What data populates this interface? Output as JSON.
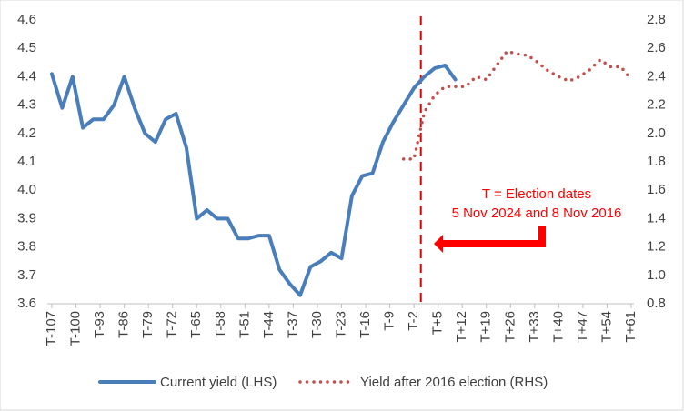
{
  "chart_data": {
    "type": "line",
    "x": [
      -107,
      -104,
      -101,
      -98,
      -95,
      -92,
      -89,
      -86,
      -83,
      -80,
      -77,
      -74,
      -71,
      -68,
      -65,
      -62,
      -59,
      -56,
      -53,
      -50,
      -47,
      -44,
      -41,
      -38,
      -35,
      -32,
      -29,
      -26,
      -23,
      -20,
      -17,
      -14,
      -11,
      -8,
      -5,
      -2,
      1,
      4,
      7,
      10,
      13,
      16,
      19,
      22,
      25,
      28,
      31,
      34,
      37,
      40,
      43,
      46,
      49,
      52,
      55,
      58,
      61
    ],
    "xlim": [
      -107,
      61
    ],
    "xticks": [
      {
        "value": -107,
        "label": "T-107"
      },
      {
        "value": -100,
        "label": "T-100"
      },
      {
        "value": -93,
        "label": "T-93"
      },
      {
        "value": -86,
        "label": "T-86"
      },
      {
        "value": -79,
        "label": "T-79"
      },
      {
        "value": -72,
        "label": "T-72"
      },
      {
        "value": -65,
        "label": "T-65"
      },
      {
        "value": -58,
        "label": "T-58"
      },
      {
        "value": -51,
        "label": "T-51"
      },
      {
        "value": -44,
        "label": "T-44"
      },
      {
        "value": -37,
        "label": "T-37"
      },
      {
        "value": -30,
        "label": "T-30"
      },
      {
        "value": -23,
        "label": "T-23"
      },
      {
        "value": -16,
        "label": "T-16"
      },
      {
        "value": -9,
        "label": "T-9"
      },
      {
        "value": -2,
        "label": "T-2"
      },
      {
        "value": 5,
        "label": "T+5"
      },
      {
        "value": 12,
        "label": "T+12"
      },
      {
        "value": 19,
        "label": "T+19"
      },
      {
        "value": 26,
        "label": "T+26"
      },
      {
        "value": 33,
        "label": "T+33"
      },
      {
        "value": 40,
        "label": "T+40"
      },
      {
        "value": 47,
        "label": "T+47"
      },
      {
        "value": 54,
        "label": "T+54"
      },
      {
        "value": 61,
        "label": "T+61"
      }
    ],
    "ylim": [
      3.6,
      4.6
    ],
    "yticks": [
      3.6,
      3.7,
      3.8,
      3.9,
      {
        "value": 4,
        "label": "4.0"
      },
      4.1,
      4.2,
      4.3,
      4.4,
      4.5,
      4.6
    ],
    "y2lim": [
      0.8,
      2.8
    ],
    "y2ticks": [
      0.8,
      {
        "value": 1,
        "label": "1.0"
      },
      1.2,
      1.4,
      1.6,
      1.8,
      {
        "value": 2,
        "label": "2.0"
      },
      2.2,
      2.4,
      2.6,
      2.8
    ],
    "grid": false,
    "vline": 0,
    "annotation": [
      "T = Election dates",
      "5 Nov 2024 and 8 Nov 2016"
    ],
    "series": [
      {
        "name": "Current yield (LHS)",
        "color": "#4a7ebb",
        "style": "solid",
        "values": [
          4.41,
          4.29,
          4.4,
          4.22,
          4.25,
          4.25,
          4.3,
          4.4,
          4.29,
          4.2,
          4.17,
          4.25,
          4.27,
          4.15,
          3.9,
          3.93,
          3.9,
          3.9,
          3.83,
          3.83,
          3.84,
          3.84,
          3.72,
          3.67,
          3.63,
          3.73,
          3.75,
          3.78,
          3.76,
          3.98,
          4.05,
          4.06,
          4.17,
          4.24,
          4.3,
          4.36,
          4.4,
          4.43,
          4.44,
          4.39,
          null,
          null,
          null,
          null,
          null,
          null,
          null,
          null,
          null,
          null,
          null,
          null,
          null,
          null,
          null,
          null,
          null
        ]
      },
      {
        "name": "Yield after 2016 election (RHS)",
        "color": "#c0504d",
        "style": "dotted",
        "axis": "y2",
        "values": [
          null,
          null,
          null,
          null,
          null,
          null,
          null,
          null,
          null,
          null,
          null,
          null,
          null,
          null,
          null,
          null,
          null,
          null,
          null,
          null,
          null,
          null,
          null,
          null,
          null,
          null,
          null,
          null,
          null,
          null,
          null,
          null,
          null,
          null,
          1.82,
          1.82,
          2.15,
          2.27,
          2.33,
          2.33,
          2.33,
          2.4,
          2.38,
          2.48,
          2.58,
          2.56,
          2.55,
          2.5,
          2.44,
          2.4,
          2.37,
          2.4,
          2.45,
          2.52,
          2.47,
          2.47,
          2.38
        ]
      }
    ]
  }
}
